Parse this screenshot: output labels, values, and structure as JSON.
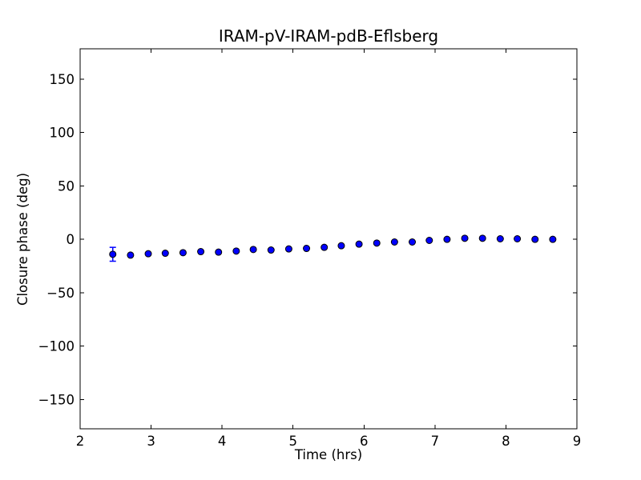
{
  "figure": {
    "background_color": "#ffffff",
    "frame_color": "#000000"
  },
  "chart_data": {
    "type": "scatter",
    "title": "IRAM-pV-IRAM-pdB-Eflsberg",
    "xlabel": "Time (hrs)",
    "ylabel": "Closure phase (deg)",
    "xlim": [
      2,
      9
    ],
    "ylim": [
      -177.5,
      178.5
    ],
    "xticks": [
      2,
      3,
      4,
      5,
      6,
      7,
      8,
      9
    ],
    "yticks": [
      -150,
      -100,
      -50,
      0,
      50,
      100,
      150
    ],
    "grid": false,
    "legend": null,
    "marker": "circle",
    "marker_color": "#0000ff",
    "marker_edge_color": "#000000",
    "errorbar_color": "#0000ff",
    "series": [
      {
        "name": "closure phase",
        "x": [
          2.46,
          2.71,
          2.96,
          3.2,
          3.45,
          3.7,
          3.95,
          4.2,
          4.44,
          4.69,
          4.94,
          5.19,
          5.44,
          5.68,
          5.93,
          6.18,
          6.43,
          6.68,
          6.92,
          7.17,
          7.42,
          7.67,
          7.92,
          8.16,
          8.41,
          8.66
        ],
        "y": [
          -14.0,
          -14.8,
          -13.5,
          -13.0,
          -12.5,
          -11.5,
          -12.0,
          -11.0,
          -9.5,
          -10.0,
          -9.0,
          -8.5,
          -7.5,
          -6.0,
          -4.5,
          -3.5,
          -2.5,
          -2.5,
          -1.0,
          0.0,
          1.0,
          1.0,
          0.5,
          0.5,
          0.0,
          0.0
        ],
        "yerr": [
          6.5,
          0,
          0,
          0,
          0,
          0,
          0,
          0,
          0,
          0,
          0,
          0,
          0,
          0,
          0,
          0,
          0,
          0,
          0,
          0,
          0,
          0,
          0,
          0,
          0,
          0
        ]
      }
    ]
  }
}
